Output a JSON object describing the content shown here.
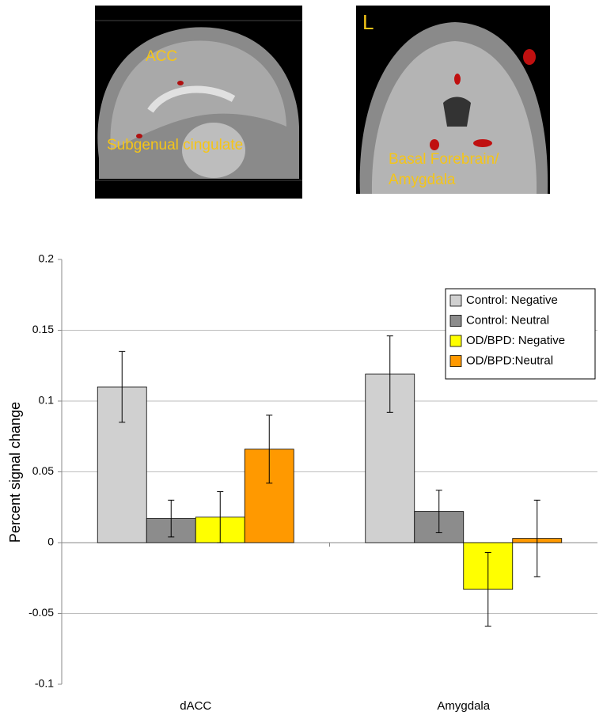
{
  "images": [
    {
      "labels": [
        "ACC",
        "Subgenual cingulate"
      ]
    },
    {
      "labels": [
        "L",
        "Basal Forebrain/",
        "Amygdala"
      ]
    }
  ],
  "chart_data": {
    "type": "bar",
    "y_label": "Percent signal change",
    "categories": [
      "dACC",
      "Amygdala"
    ],
    "series": [
      {
        "name": "Control: Negative",
        "color": "#d0d0d0",
        "values": [
          0.11,
          0.119
        ],
        "errors": [
          0.025,
          0.027
        ]
      },
      {
        "name": "Control: Neutral",
        "color": "#8c8c8c",
        "values": [
          0.017,
          0.022
        ],
        "errors": [
          0.013,
          0.015
        ]
      },
      {
        "name": "OD/BPD: Negative",
        "color": "#ffff00",
        "values": [
          0.018,
          -0.033
        ],
        "errors": [
          0.018,
          0.026
        ]
      },
      {
        "name": "OD/BPD:Neutral",
        "color": "#ff9900",
        "values": [
          0.066,
          0.003
        ],
        "errors": [
          0.024,
          0.027
        ]
      }
    ],
    "ylim": [
      -0.1,
      0.2
    ],
    "yticks": [
      -0.1,
      -0.05,
      0,
      0.05,
      0.1,
      0.15,
      0.2
    ],
    "grid": true,
    "legend": "upper right"
  }
}
